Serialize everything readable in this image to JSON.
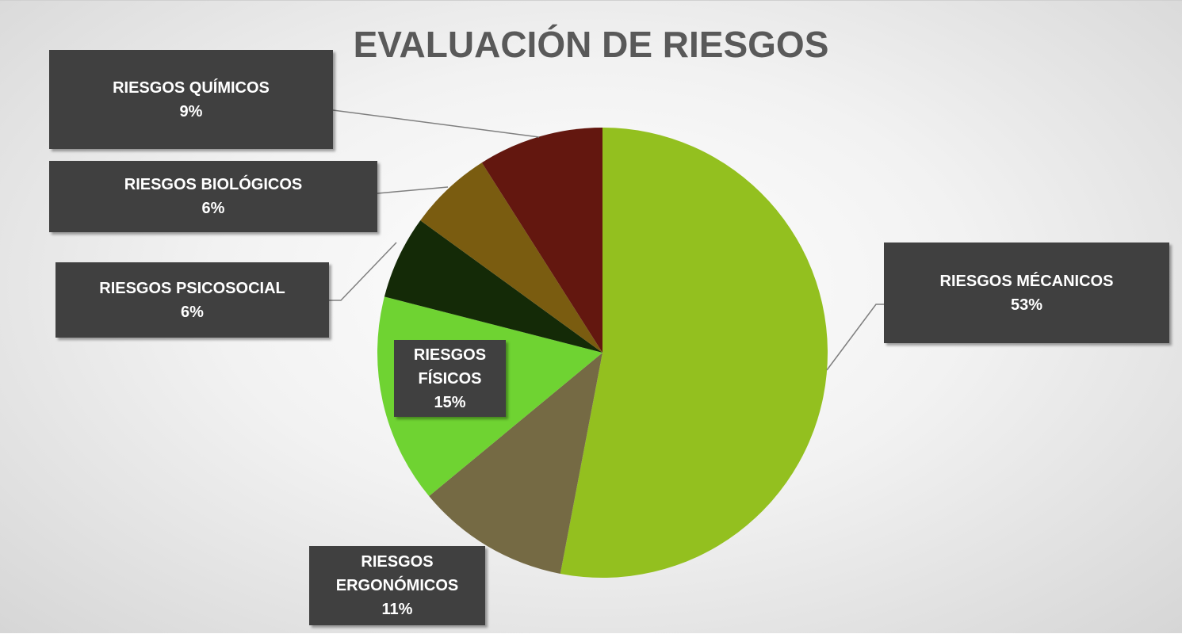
{
  "chart_data": {
    "type": "pie",
    "title": "EVALUACIÓN DE RIESGOS",
    "categories": [
      "RIESGOS MÉCANICOS",
      "RIESGOS ERGONÓMICOS",
      "RIESGOS FÍSICOS",
      "RIESGOS PSICOSOCIAL",
      "RIESGOS BIOLÓGICOS",
      "RIESGOS QUÍMICOS"
    ],
    "values": [
      53,
      11,
      15,
      6,
      6,
      9
    ],
    "value_labels": [
      "53%",
      "11%",
      "15%",
      "6%",
      "6%",
      "9%"
    ],
    "colors": [
      "#93c01f",
      "#756a44",
      "#6fd332",
      "#142a07",
      "#7a5c10",
      "#63170f"
    ]
  }
}
